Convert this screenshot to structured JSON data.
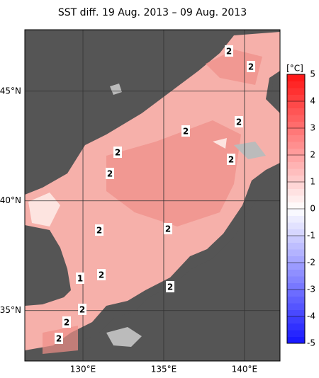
{
  "title": "SST diff. 19 Aug. 2013 – 09 Aug. 2013",
  "map": {
    "xlim": [
      126.4,
      142.2
    ],
    "ylim": [
      32.7,
      47.8
    ],
    "xticks": [
      {
        "value": 130,
        "label": "130°E"
      },
      {
        "value": 135,
        "label": "135°E"
      },
      {
        "value": 140,
        "label": "140°E"
      }
    ],
    "yticks": [
      {
        "value": 35,
        "label": "35°N"
      },
      {
        "value": 40,
        "label": "40°N"
      },
      {
        "value": 45,
        "label": "45°N"
      }
    ],
    "contour_labels": [
      "2",
      "2",
      "2",
      "2",
      "2",
      "2",
      "2",
      "2",
      "2",
      "2",
      "2",
      "1",
      "2",
      "2",
      "2"
    ]
  },
  "colorbar": {
    "unit": "[°C]",
    "lim": [
      -5,
      5
    ],
    "ticks": [
      5,
      4,
      3,
      2,
      1,
      0,
      -1,
      -2,
      -3,
      -4,
      -5
    ]
  }
}
